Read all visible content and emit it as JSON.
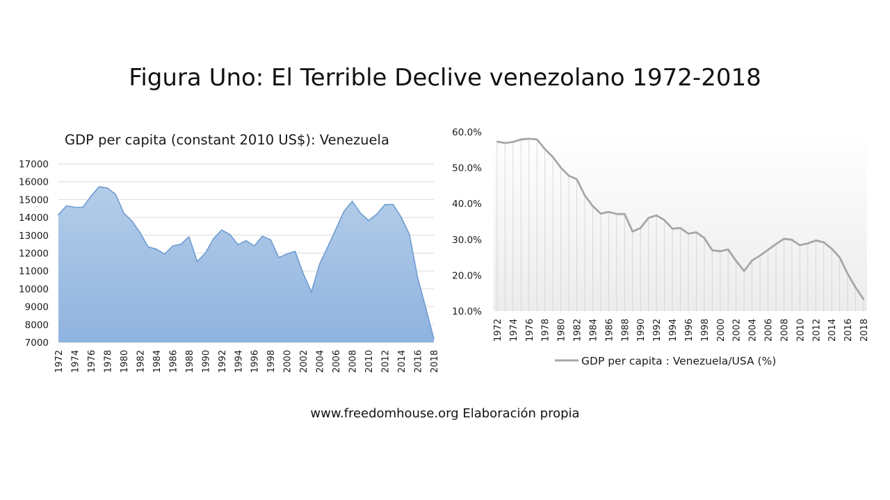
{
  "slide": {
    "title": "Figura Uno: El Terrible Declive venezolano 1972-2018",
    "source": "www.freedomhouse.org  Elaboración propia"
  },
  "chart_data": [
    {
      "type": "area",
      "title": "GDP per capita (constant  2010 US$): Venezuela",
      "xlabel": "",
      "ylabel": "",
      "x": [
        1972,
        1973,
        1974,
        1975,
        1976,
        1977,
        1978,
        1979,
        1980,
        1981,
        1982,
        1983,
        1984,
        1985,
        1986,
        1987,
        1988,
        1989,
        1990,
        1991,
        1992,
        1993,
        1994,
        1995,
        1996,
        1997,
        1998,
        1999,
        2000,
        2001,
        2002,
        2003,
        2004,
        2005,
        2006,
        2007,
        2008,
        2009,
        2010,
        2011,
        2012,
        2013,
        2014,
        2015,
        2016,
        2017,
        2018
      ],
      "x_tick_labels": [
        "1972",
        "1974",
        "1976",
        "1978",
        "1980",
        "1982",
        "1984",
        "1986",
        "1988",
        "1990",
        "1992",
        "1994",
        "1996",
        "1998",
        "2000",
        "2002",
        "2004",
        "2006",
        "2008",
        "2010",
        "2012",
        "2014",
        "2016",
        "2018"
      ],
      "y_tick_labels": [
        "7000",
        "8000",
        "9000",
        "10000",
        "11000",
        "12000",
        "13000",
        "14000",
        "15000",
        "16000",
        "17000"
      ],
      "series": [
        {
          "values": [
            14150,
            14650,
            14570,
            14570,
            15200,
            15720,
            15650,
            15300,
            14250,
            13800,
            13150,
            12350,
            12230,
            11950,
            12400,
            12500,
            12920,
            11530,
            12000,
            12800,
            13300,
            13050,
            12480,
            12700,
            12400,
            12950,
            12750,
            11750,
            11950,
            12100,
            10850,
            9820,
            11400,
            12350,
            13350,
            14350,
            14900,
            14250,
            13830,
            14170,
            14720,
            14720,
            14020,
            13050,
            10650,
            8930,
            7200
          ],
          "color": "#a9c5e8"
        }
      ],
      "ylim": [
        7000,
        17000
      ],
      "grid": true,
      "legend": "none"
    },
    {
      "type": "line",
      "title": "",
      "xlabel": "",
      "ylabel": "",
      "x": [
        1972,
        1973,
        1974,
        1975,
        1976,
        1977,
        1978,
        1979,
        1980,
        1981,
        1982,
        1983,
        1984,
        1985,
        1986,
        1987,
        1988,
        1989,
        1990,
        1991,
        1992,
        1993,
        1994,
        1995,
        1996,
        1997,
        1998,
        1999,
        2000,
        2001,
        2002,
        2003,
        2004,
        2005,
        2006,
        2007,
        2008,
        2009,
        2010,
        2011,
        2012,
        2013,
        2014,
        2015,
        2016,
        2017,
        2018
      ],
      "x_tick_labels": [
        "1972",
        "1974",
        "1976",
        "1978",
        "1980",
        "1982",
        "1984",
        "1986",
        "1988",
        "1990",
        "1992",
        "1994",
        "1996",
        "1998",
        "2000",
        "2002",
        "2004",
        "2006",
        "2008",
        "2010",
        "2012",
        "2014",
        "2016",
        "2018"
      ],
      "y_tick_labels": [
        "10.0%",
        "20.0%",
        "30.0%",
        "40.0%",
        "50.0%",
        "60.0%"
      ],
      "series": [
        {
          "name": "GDP per capita : Venezuela/USA (%)",
          "values": [
            57.3,
            56.9,
            57.2,
            57.9,
            58.1,
            57.9,
            55.2,
            53.0,
            50.0,
            47.8,
            46.8,
            42.3,
            39.3,
            37.2,
            37.7,
            37.1,
            37.1,
            32.2,
            33.2,
            36.0,
            36.7,
            35.4,
            33.0,
            33.2,
            31.6,
            32.0,
            30.4,
            27.0,
            26.7,
            27.2,
            24.0,
            21.2,
            24.1,
            25.5,
            27.1,
            28.7,
            30.2,
            29.9,
            28.4,
            28.9,
            29.7,
            29.2,
            27.4,
            25.0,
            20.4,
            16.6,
            13.3
          ],
          "color": "#a6a6a6"
        }
      ],
      "ylim": [
        10,
        60
      ],
      "grid": false,
      "legend": "bottom"
    }
  ]
}
